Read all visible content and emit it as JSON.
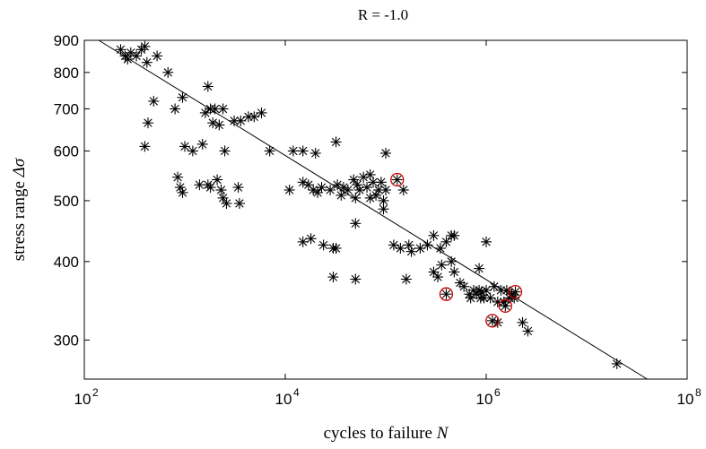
{
  "chart_data": {
    "type": "scatter",
    "title": "R = -1.0",
    "xlabel": "cycles to failure",
    "xlabel_var": "N",
    "ylabel": "stress range",
    "ylabel_var": "Δσ",
    "xscale": "log",
    "yscale": "log",
    "xlim": [
      100,
      100000000
    ],
    "ylim": [
      260,
      900
    ],
    "x_ticks": [
      {
        "value": 100,
        "base": "10",
        "exp": "2"
      },
      {
        "value": 10000,
        "base": "10",
        "exp": "4"
      },
      {
        "value": 1000000,
        "base": "10",
        "exp": "6"
      },
      {
        "value": 100000000,
        "base": "10",
        "exp": "8"
      }
    ],
    "y_ticks": [
      {
        "value": 300,
        "label": "300"
      },
      {
        "value": 400,
        "label": "400"
      },
      {
        "value": 500,
        "label": "500"
      },
      {
        "value": 600,
        "label": "600"
      },
      {
        "value": 700,
        "label": "700"
      },
      {
        "value": 800,
        "label": "800"
      },
      {
        "value": 900,
        "label": "900"
      }
    ],
    "grid": false,
    "fit_line": {
      "x": [
        100,
        40000000
      ],
      "y": [
        930,
        260
      ]
    },
    "series": [
      {
        "marker": "asterisk",
        "color": "#000000",
        "points": [
          [
            230,
            870
          ],
          [
            255,
            850
          ],
          [
            270,
            840
          ],
          [
            290,
            860
          ],
          [
            330,
            850
          ],
          [
            370,
            870
          ],
          [
            400,
            880
          ],
          [
            420,
            830
          ],
          [
            530,
            850
          ],
          [
            680,
            800
          ],
          [
            400,
            610
          ],
          [
            430,
            665
          ],
          [
            490,
            720
          ],
          [
            800,
            700
          ],
          [
            950,
            730
          ],
          [
            1600,
            690
          ],
          [
            1700,
            760
          ],
          [
            1800,
            700
          ],
          [
            2000,
            700
          ],
          [
            2400,
            700
          ],
          [
            3100,
            670
          ],
          [
            3600,
            670
          ],
          [
            4300,
            680
          ],
          [
            4900,
            680
          ],
          [
            5800,
            690
          ],
          [
            1900,
            665
          ],
          [
            2200,
            660
          ],
          [
            1000,
            610
          ],
          [
            1200,
            600
          ],
          [
            1500,
            615
          ],
          [
            2500,
            600
          ],
          [
            7000,
            600
          ],
          [
            850,
            545
          ],
          [
            900,
            525
          ],
          [
            950,
            515
          ],
          [
            1400,
            530
          ],
          [
            1700,
            530
          ],
          [
            1800,
            525
          ],
          [
            2100,
            540
          ],
          [
            2300,
            520
          ],
          [
            2400,
            505
          ],
          [
            2600,
            495
          ],
          [
            3400,
            525
          ],
          [
            3500,
            495
          ],
          [
            12000,
            600
          ],
          [
            15000,
            600
          ],
          [
            20000,
            595
          ],
          [
            32000,
            620
          ],
          [
            100000,
            595
          ],
          [
            11000,
            520
          ],
          [
            15000,
            535
          ],
          [
            17000,
            530
          ],
          [
            19000,
            520
          ],
          [
            23000,
            525
          ],
          [
            28000,
            520
          ],
          [
            33000,
            530
          ],
          [
            38000,
            525
          ],
          [
            42000,
            520
          ],
          [
            48000,
            540
          ],
          [
            52000,
            530
          ],
          [
            55000,
            520
          ],
          [
            60000,
            545
          ],
          [
            65000,
            525
          ],
          [
            70000,
            550
          ],
          [
            75000,
            535
          ],
          [
            80000,
            510
          ],
          [
            85000,
            520
          ],
          [
            90000,
            535
          ],
          [
            95000,
            500
          ],
          [
            100000,
            520
          ],
          [
            150000,
            520
          ],
          [
            21000,
            515
          ],
          [
            36000,
            510
          ],
          [
            50000,
            505
          ],
          [
            70000,
            505
          ],
          [
            15000,
            430
          ],
          [
            18000,
            435
          ],
          [
            24000,
            425
          ],
          [
            30000,
            420
          ],
          [
            32000,
            420
          ],
          [
            50000,
            460
          ],
          [
            95000,
            485
          ],
          [
            120000,
            425
          ],
          [
            140000,
            420
          ],
          [
            170000,
            425
          ],
          [
            180000,
            415
          ],
          [
            220000,
            420
          ],
          [
            260000,
            425
          ],
          [
            300000,
            440
          ],
          [
            350000,
            420
          ],
          [
            400000,
            430
          ],
          [
            450000,
            440
          ],
          [
            480000,
            440
          ],
          [
            1000000,
            430
          ],
          [
            30000,
            378
          ],
          [
            50000,
            375
          ],
          [
            160000,
            375
          ],
          [
            300000,
            385
          ],
          [
            330000,
            378
          ],
          [
            360000,
            395
          ],
          [
            450000,
            400
          ],
          [
            480000,
            385
          ],
          [
            550000,
            370
          ],
          [
            600000,
            365
          ],
          [
            680000,
            355
          ],
          [
            700000,
            350
          ],
          [
            750000,
            360
          ],
          [
            800000,
            355
          ],
          [
            850000,
            360
          ],
          [
            880000,
            350
          ],
          [
            900000,
            358
          ],
          [
            950000,
            350
          ],
          [
            1000000,
            360
          ],
          [
            1100000,
            350
          ],
          [
            1200000,
            365
          ],
          [
            1300000,
            345
          ],
          [
            1400000,
            360
          ],
          [
            1500000,
            345
          ],
          [
            1600000,
            360
          ],
          [
            1700000,
            350
          ],
          [
            1800000,
            355
          ],
          [
            1900000,
            350
          ],
          [
            850000,
            390
          ],
          [
            1300000,
            320
          ],
          [
            2300000,
            320
          ],
          [
            2600000,
            310
          ],
          [
            20000000,
            275
          ]
        ]
      },
      {
        "marker": "circle",
        "color": "#cc0000",
        "points": [
          [
            130000,
            540
          ],
          [
            400000,
            355
          ],
          [
            1150000,
            322
          ],
          [
            1550000,
            340
          ],
          [
            1950000,
            358
          ]
        ]
      }
    ]
  }
}
